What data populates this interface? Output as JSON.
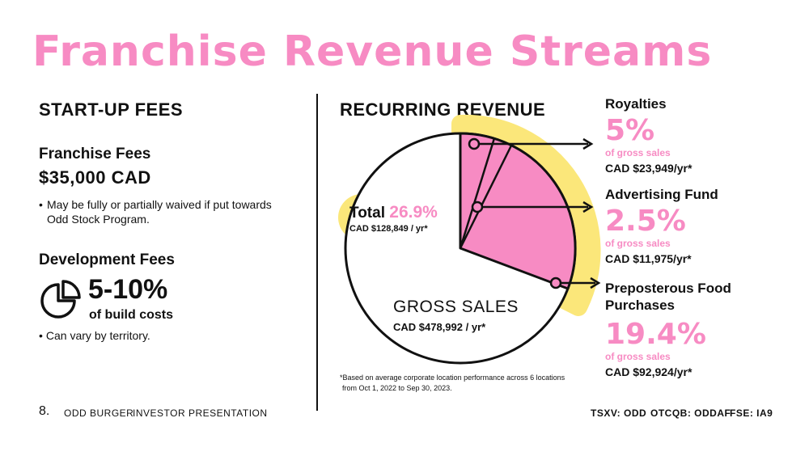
{
  "title": "Franchise Revenue Streams",
  "startup": {
    "heading": "START-UP FEES",
    "franchise_heading": "Franchise Fees",
    "franchise_amount": "$35,000 CAD",
    "franchise_note": "May be fully or partially waived if put towards Odd Stock Program.",
    "dev_heading": "Development Fees",
    "dev_range": "5-10%",
    "dev_sub": "of build costs",
    "dev_note": "Can vary by territory."
  },
  "recurring": {
    "heading": "RECURRING REVENUE",
    "total_label": "Total",
    "total_pct": "26.9%",
    "total_amount": "CAD $128,849 / yr*",
    "gross_label": "GROSS SALES",
    "gross_amount": "CAD $478,992 / yr*",
    "note_line1": "*Based on average corporate location performance across 6 locations",
    "note_line2": "from Oct 1, 2022 to Sep 30, 2023.",
    "streams": [
      {
        "name": "Royalties",
        "pct": "5%",
        "basis": "of gross sales",
        "amount": "CAD $23,949/yr*"
      },
      {
        "name": "Advertising Fund",
        "pct": "2.5%",
        "basis": "of gross sales",
        "amount": "CAD $11,975/yr*"
      },
      {
        "name_line1": "Preposterous Food",
        "name_line2": "Purchases",
        "pct": "19.4%",
        "basis": "of gross sales",
        "amount": "CAD $92,924/yr*"
      }
    ]
  },
  "footer": {
    "page": "8.",
    "company": "ODD BURGER",
    "doc": "INVESTOR PRESENTATION",
    "tickers": [
      "TSXV: ODD",
      "OTCQB: ODDAF",
      "FSE: IA9"
    ]
  },
  "colors": {
    "accent": "#f78bc3",
    "highlight": "#fbe77a",
    "ink": "#111111"
  },
  "icons": {
    "dev_fees": "pie-chart-icon"
  }
}
